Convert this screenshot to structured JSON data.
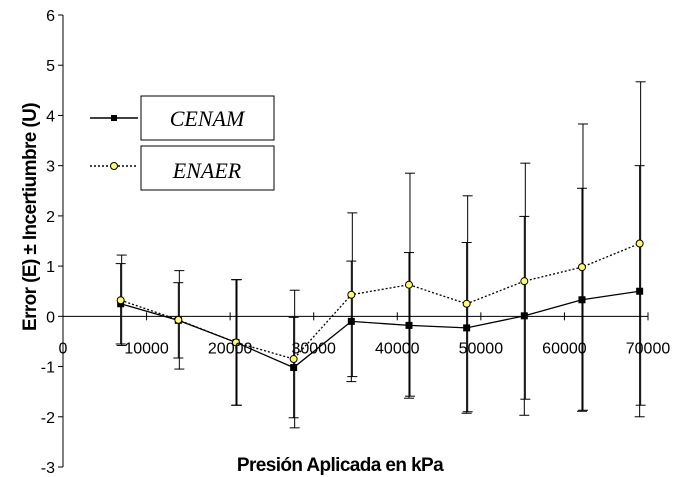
{
  "chart_data": {
    "type": "line",
    "title": "",
    "xlabel": "Presión Aplicada en  kPa",
    "ylabel": "Error (E) ± Incertiumbre (U)",
    "xlim": [
      0,
      70000
    ],
    "ylim": [
      -3,
      6
    ],
    "xticks": [
      0,
      10000,
      20000,
      30000,
      40000,
      50000,
      60000,
      70000
    ],
    "yticks": [
      -3,
      -2,
      -1,
      0,
      1,
      2,
      3,
      4,
      5,
      6
    ],
    "grid": false,
    "legend_position": "top-left",
    "series": [
      {
        "name": "CENAM",
        "line_style": "solid",
        "color": "#000000",
        "marker": "square",
        "x": [
          6900,
          13800,
          20700,
          27600,
          34500,
          41400,
          48300,
          55200,
          62100,
          69000
        ],
        "y": [
          0.25,
          -0.08,
          -0.52,
          -1.02,
          -0.1,
          -0.18,
          -0.23,
          0.01,
          0.33,
          0.5
        ],
        "error": [
          0.8,
          0.75,
          1.25,
          1.0,
          1.2,
          1.45,
          1.7,
          1.98,
          2.22,
          2.5
        ]
      },
      {
        "name": "ENAER",
        "line_style": "dotted",
        "color": "#000000",
        "marker_fill": "#ffff66",
        "marker": "circle",
        "x": [
          6900,
          13800,
          20700,
          27600,
          34500,
          41400,
          48300,
          55200,
          62100,
          69000
        ],
        "y": [
          0.32,
          -0.07,
          -0.52,
          -0.85,
          0.43,
          0.63,
          0.25,
          0.7,
          0.98,
          1.45
        ],
        "error": [
          0.9,
          0.98,
          1.25,
          1.37,
          1.63,
          2.22,
          2.15,
          2.35,
          2.85,
          3.22
        ]
      }
    ]
  }
}
